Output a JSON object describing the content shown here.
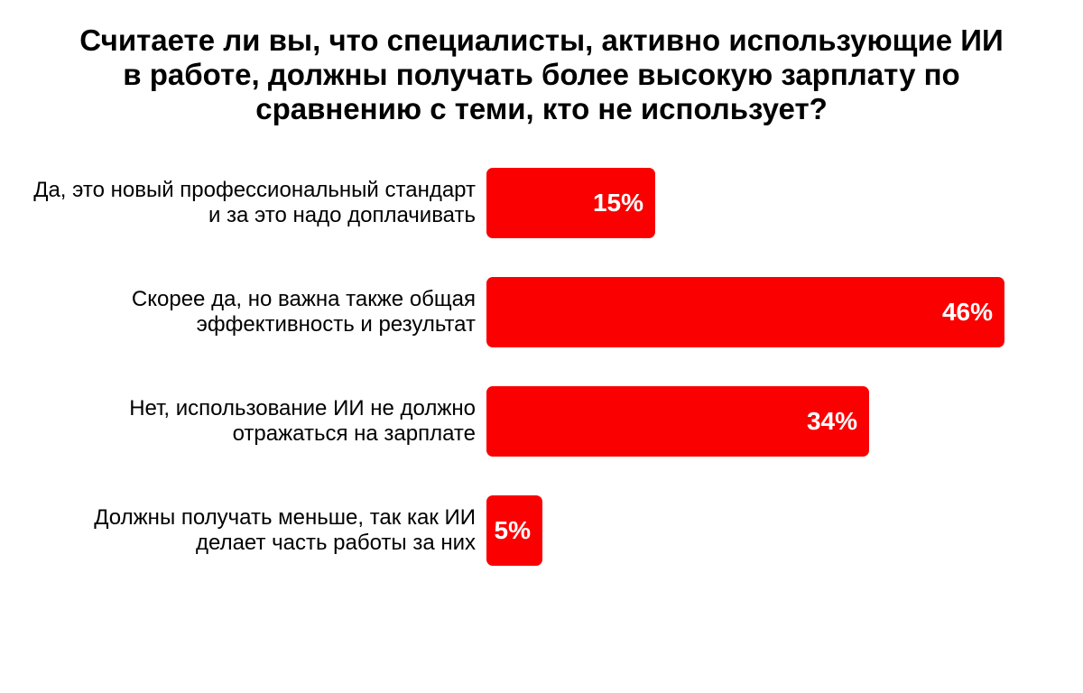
{
  "header": {
    "title": "Считаете ли вы, что специалисты, активно использующие ИИ\nв работе, должны получать более высокую зарплату по\nсравнению с теми, кто не использует?"
  },
  "chart_data": {
    "type": "bar",
    "orientation": "horizontal",
    "title": "Считаете ли вы, что специалисты, активно использующие ИИ в работе, должны получать более высокую зарплату по сравнению с теми, кто не использует?",
    "categories": [
      "Да, это новый профессиональный стандарт и за это надо доплачивать",
      "Скорее да, но важна также общая эффективность и результат",
      "Нет, использование ИИ не должно отражаться на зарплате",
      "Должны получать меньше, так как ИИ делает часть работы за них"
    ],
    "label_lines": [
      [
        "Да, это новый профессиональный стандарт",
        "и за это надо доплачивать"
      ],
      [
        "Скорее да, но важна также общая",
        "эффективность и результат"
      ],
      [
        "Нет, использование ИИ не должно",
        "отражаться на зарплате"
      ],
      [
        "Должны получать меньше, так как ИИ",
        "делает часть работы за них"
      ]
    ],
    "values": [
      15,
      46,
      34,
      5
    ],
    "value_labels": [
      "15%",
      "46%",
      "34%",
      "5%"
    ],
    "unit": "%",
    "xlim": [
      0,
      50
    ],
    "grid": false,
    "legend": false,
    "value_labels_position": "inside-end",
    "colors": {
      "bar": "#fa0000",
      "value_label": "#ffffff",
      "text": "#000000",
      "background": "#ffffff"
    }
  }
}
